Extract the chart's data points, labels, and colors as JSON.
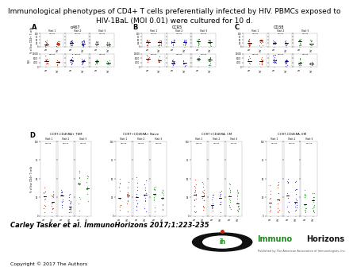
{
  "title_line1": "Immunological phenotypes of CD4+ T cells preferentially infected by HIV. PBMCs exposed to",
  "title_line2": "HIV-1BaL (MOI 0.01) were cultured for 10 d.",
  "title_fontsize": 6.5,
  "citation": "Carley Tasker et al. ImmunoHorizons 2017;1:223-235",
  "citation_fontsize": 6.0,
  "copyright": "Copyright © 2017 The Authors",
  "copyright_fontsize": 4.5,
  "panel_labels": [
    "A",
    "B",
    "C",
    "D"
  ],
  "panel_ABC_titles": [
    "α467",
    "CCR5",
    "CD38"
  ],
  "panel_D_titles": [
    "CCR7-CD45RA+ TEM",
    "CCR7+CD45RA+ Naive",
    "CCR7+CD45RA- CM",
    "CCR7-CD45RA- EM"
  ],
  "visit_labels": [
    "Visit 1",
    "Visit 2",
    "Visit 3"
  ],
  "x_tick_labels": [
    "NI",
    "HIV"
  ],
  "bg_color": "#ffffff",
  "dot_color_v1": "#cc2200",
  "dot_color_v2": "#1a1acc",
  "dot_color_v3": "#228822",
  "logo_text_immuno": "Immuno",
  "logo_text_horizons": "Horizons",
  "logo_sub": "Published by The American Association of Immunologists, Inc.",
  "logo_immuno_color": "#228822",
  "logo_horizons_color": "#111111",
  "logo_icon_color": "#111111",
  "logo_dot_color": "#cc2200"
}
